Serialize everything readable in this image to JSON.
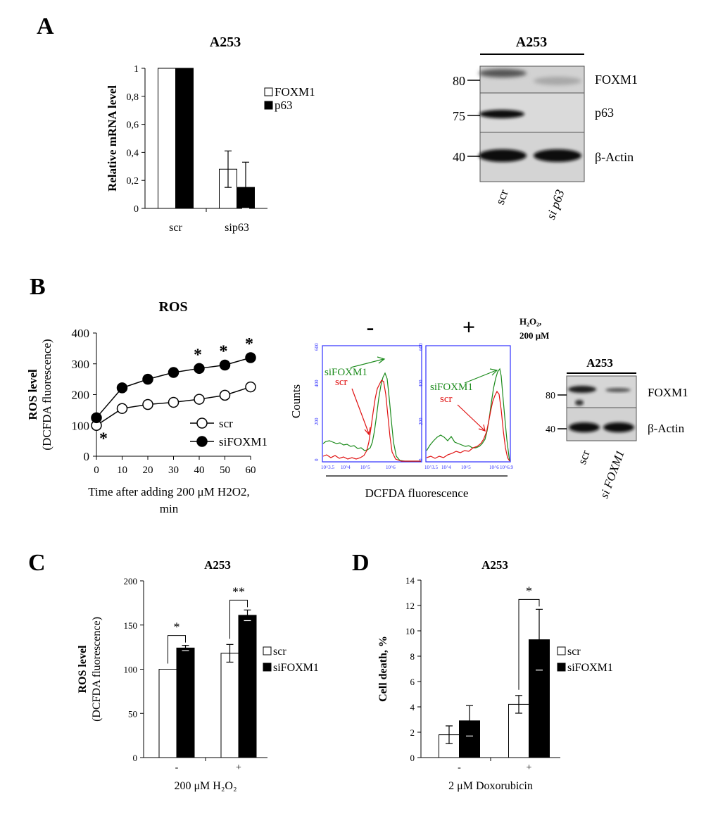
{
  "panels": {
    "a": {
      "letter": "A"
    },
    "b": {
      "letter": "B"
    },
    "c": {
      "letter": "C"
    },
    "d": {
      "letter": "D"
    }
  },
  "chart_data": [
    {
      "id": "A-bar",
      "type": "bar",
      "title": "A253",
      "categories": [
        "scr",
        "sip63"
      ],
      "series": [
        {
          "name": "FOXM1",
          "values": [
            1.0,
            0.28
          ],
          "errors": [
            0,
            0.13
          ],
          "fill": "#ffffff"
        },
        {
          "name": "p63",
          "values": [
            1.0,
            0.15
          ],
          "errors": [
            0,
            0.18
          ],
          "fill": "#000000"
        }
      ],
      "ylabel": "Relative mRNA level",
      "xlabel": "",
      "ylim": [
        0,
        1
      ],
      "yticks": [
        "0",
        "0,2",
        "0,4",
        "0,6",
        "0,8",
        "1"
      ]
    },
    {
      "id": "A-blot",
      "type": "western-blot",
      "title": "A253",
      "lanes": [
        "scr",
        "si p63"
      ],
      "markers": [
        "80",
        "75",
        "40"
      ],
      "bands": [
        "FOXM1",
        "p63",
        "β-Actin"
      ]
    },
    {
      "id": "B-line",
      "type": "line",
      "title": "ROS",
      "x": [
        0,
        10,
        20,
        30,
        40,
        50,
        60
      ],
      "series": [
        {
          "name": "scr",
          "values": [
            100,
            155,
            168,
            175,
            185,
            198,
            225
          ],
          "marker": "open-circle"
        },
        {
          "name": "siFOXM1",
          "values": [
            125,
            222,
            250,
            272,
            285,
            296,
            320
          ],
          "marker": "filled-circle"
        }
      ],
      "significance": [
        {
          "x": 0,
          "mark": "*"
        },
        {
          "x": 40,
          "mark": "*"
        },
        {
          "x": 50,
          "mark": "*"
        },
        {
          "x": 60,
          "mark": "*"
        }
      ],
      "xlabel": [
        "Time after adding 200 μM H2O2,",
        "min"
      ],
      "ylabel": "ROS level",
      "ylabel2": "(DCFDA fluorescence)",
      "xlim": [
        0,
        60
      ],
      "ylim": [
        0,
        400
      ],
      "xticks": [
        "0",
        "10",
        "20",
        "30",
        "40",
        "50",
        "60"
      ],
      "yticks": [
        "0",
        "100",
        "200",
        "300",
        "400"
      ]
    },
    {
      "id": "B-flow",
      "type": "histogram",
      "conditions": [
        "-",
        "+"
      ],
      "treatment": [
        "H₂O₂,",
        "200 μM"
      ],
      "ylabel": "Counts",
      "xlabel": "DCFDA fluorescence",
      "series": [
        {
          "name": "siFOXM1",
          "color": "#1a8a1a"
        },
        {
          "name": "scr",
          "color": "#e01010"
        }
      ]
    },
    {
      "id": "B-blot",
      "type": "western-blot",
      "title": "A253",
      "lanes": [
        "scr",
        "si FOXM1"
      ],
      "markers": [
        "80",
        "40"
      ],
      "bands": [
        "FOXM1",
        "β-Actin"
      ]
    },
    {
      "id": "C-bar",
      "type": "bar",
      "title": "A253",
      "categories": [
        "-",
        "+"
      ],
      "series": [
        {
          "name": "scr",
          "values": [
            100,
            118
          ],
          "errors": [
            0,
            10
          ],
          "fill": "#ffffff"
        },
        {
          "name": "siFOXM1",
          "values": [
            124,
            161
          ],
          "errors": [
            3,
            6
          ],
          "fill": "#000000"
        }
      ],
      "significance": [
        {
          "category": "-",
          "mark": "*"
        },
        {
          "category": "+",
          "mark": "**"
        }
      ],
      "xlabel": "200 μM H₂O₂",
      "ylabel": "ROS level",
      "ylabel2": "(DCFDA fluorescence)",
      "ylim": [
        0,
        200
      ],
      "yticks": [
        "0",
        "50",
        "100",
        "150",
        "200"
      ]
    },
    {
      "id": "D-bar",
      "type": "bar",
      "title": "A253",
      "categories": [
        "-",
        "+"
      ],
      "series": [
        {
          "name": "scr",
          "values": [
            1.8,
            4.2
          ],
          "errors": [
            0.7,
            0.7
          ],
          "fill": "#ffffff"
        },
        {
          "name": "siFOXM1",
          "values": [
            2.9,
            9.3
          ],
          "errors": [
            1.2,
            2.4
          ],
          "fill": "#000000"
        }
      ],
      "significance": [
        {
          "category": "+",
          "mark": "*"
        }
      ],
      "xlabel": "2 μM Doxorubicin",
      "ylabel": "Cell death, %",
      "ylim": [
        0,
        14
      ],
      "yticks": [
        "0",
        "2",
        "4",
        "6",
        "8",
        "10",
        "12",
        "14"
      ]
    }
  ]
}
